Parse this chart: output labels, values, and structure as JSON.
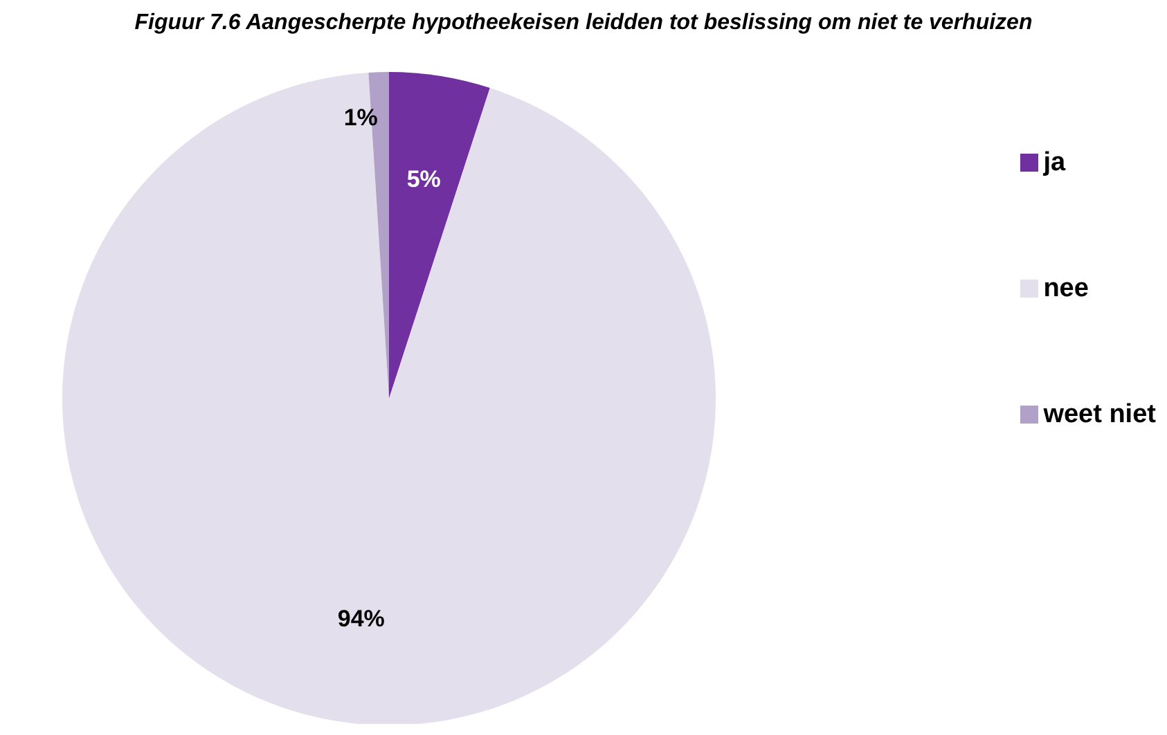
{
  "chart_data": {
    "type": "pie",
    "title": "Figuur 7.6 Aangescherpte hypotheekeisen leidden tot beslissing om niet te verhuizen",
    "categories": [
      "ja",
      "nee",
      "weet niet"
    ],
    "values": [
      5,
      94,
      1
    ],
    "colors": [
      "#7030a0",
      "#e4dfec",
      "#b1a0c7"
    ],
    "value_labels": [
      "5%",
      "94%",
      "1%"
    ],
    "legend": "right"
  }
}
